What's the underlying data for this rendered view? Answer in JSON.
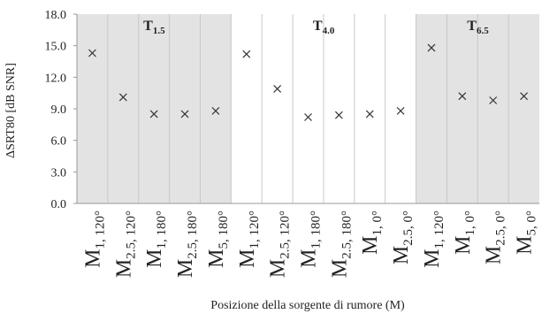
{
  "chart_data": {
    "type": "scatter",
    "title": "",
    "xlabel": "Posizione della sorgente di rumore (M)",
    "ylabel": "ΔSRT80 [dB SNR]",
    "ylim": [
      0,
      18
    ],
    "yticks": [
      "0.0",
      "3.0",
      "6.0",
      "9.0",
      "12.0",
      "15.0",
      "18.0"
    ],
    "grid": "vertical category separators",
    "marker": "×",
    "groups": [
      {
        "label_main": "T",
        "label_sub": "1.5",
        "shaded": true,
        "start": 0,
        "count": 5
      },
      {
        "label_main": "T",
        "label_sub": "4.0",
        "shaded": false,
        "start": 5,
        "count": 6
      },
      {
        "label_main": "T",
        "label_sub": "6.5",
        "shaded": true,
        "start": 11,
        "count": 4
      }
    ],
    "categories": [
      {
        "main": "M",
        "sub": "1, 120°"
      },
      {
        "main": "M",
        "sub": "2.5, 120°"
      },
      {
        "main": "M",
        "sub": "1, 180°"
      },
      {
        "main": "M",
        "sub": "2.5, 180°"
      },
      {
        "main": "M",
        "sub": "5, 180°"
      },
      {
        "main": "M",
        "sub": "1, 120°"
      },
      {
        "main": "M",
        "sub": "2.5, 120°"
      },
      {
        "main": "M",
        "sub": "1, 180°"
      },
      {
        "main": "M",
        "sub": "2.5, 180°"
      },
      {
        "main": "M",
        "sub": "1, 0°"
      },
      {
        "main": "M",
        "sub": "2.5, 0°"
      },
      {
        "main": "M",
        "sub": "1, 120°"
      },
      {
        "main": "M",
        "sub": "1, 0°"
      },
      {
        "main": "M",
        "sub": "2.5, 0°"
      },
      {
        "main": "M",
        "sub": "5, 0°"
      }
    ],
    "values": [
      14.3,
      10.1,
      8.5,
      8.5,
      8.8,
      14.2,
      10.9,
      8.2,
      8.4,
      8.5,
      8.8,
      14.8,
      10.2,
      9.8,
      10.2
    ],
    "colors": {
      "shade": "#e3e3e3",
      "grid": "#c8c8c8",
      "axis": "#9a9a9a",
      "marker": "#333333",
      "text": "#222222"
    }
  }
}
